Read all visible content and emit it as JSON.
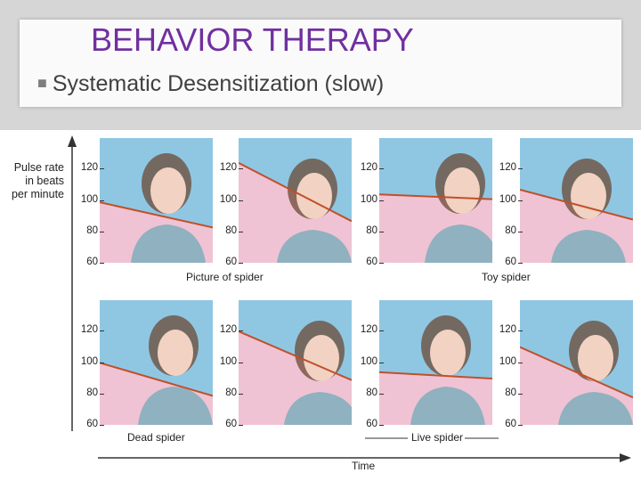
{
  "slide": {
    "title": "BEHAVIOR THERAPY",
    "bullet": "Systematic Desensitization (slow)"
  },
  "figure": {
    "y_axis_label_lines": [
      "Pulse rate",
      "in beats",
      "per minute"
    ],
    "x_axis_label": "Time",
    "ticks": [
      "120",
      "100",
      "80",
      "60"
    ],
    "stage_labels": {
      "picture": "Picture of spider",
      "toy": "Toy spider",
      "dead": "Dead spider",
      "live": "Live spider"
    }
  },
  "colors": {
    "title": "#7030a0",
    "trend_line": "#c0502a",
    "sky": "#8fc7e3",
    "pink": "#efc3d3"
  },
  "chart_data": [
    {
      "type": "line",
      "x": [
        "start",
        "end"
      ],
      "series": [
        {
          "values": [
            99,
            83
          ]
        }
      ],
      "ylim": [
        60,
        130
      ]
    },
    {
      "type": "line",
      "x": [
        "start",
        "end"
      ],
      "series": [
        {
          "values": [
            124,
            87
          ]
        }
      ],
      "ylim": [
        60,
        130
      ]
    },
    {
      "type": "line",
      "x": [
        "start",
        "end"
      ],
      "series": [
        {
          "values": [
            104,
            101
          ]
        }
      ],
      "ylim": [
        60,
        130
      ]
    },
    {
      "type": "line",
      "x": [
        "start",
        "end"
      ],
      "series": [
        {
          "values": [
            107,
            88
          ]
        }
      ],
      "ylim": [
        60,
        130
      ]
    },
    {
      "type": "line",
      "x": [
        "start",
        "end"
      ],
      "series": [
        {
          "values": [
            100,
            79
          ]
        }
      ],
      "ylim": [
        60,
        130
      ]
    },
    {
      "type": "line",
      "x": [
        "start",
        "end"
      ],
      "series": [
        {
          "values": [
            120,
            89
          ]
        }
      ],
      "ylim": [
        60,
        130
      ]
    },
    {
      "type": "line",
      "x": [
        "start",
        "end"
      ],
      "series": [
        {
          "values": [
            94,
            90
          ]
        }
      ],
      "ylim": [
        60,
        130
      ]
    },
    {
      "type": "line",
      "x": [
        "start",
        "end"
      ],
      "series": [
        {
          "values": [
            110,
            78
          ]
        }
      ],
      "ylim": [
        60,
        130
      ]
    }
  ]
}
